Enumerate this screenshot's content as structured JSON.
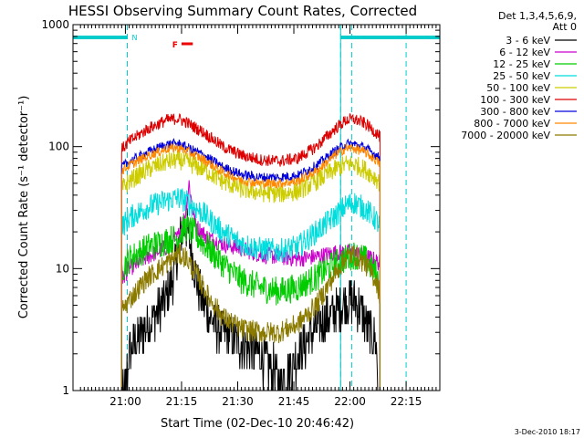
{
  "chart_data": {
    "type": "line",
    "title": "HESSI Observing Summary Count Rates, Corrected",
    "xlabel": "Start Time (02-Dec-10 20:46:42)",
    "ylabel": "Corrected Count Rate (s⁻¹ detector⁻¹)",
    "yscale": "log",
    "xlim_minutes_after_2046": [
      0,
      98
    ],
    "ylim": [
      1,
      1000
    ],
    "x_ticks": [
      {
        "label": "21:00",
        "min": 14
      },
      {
        "label": "21:15",
        "min": 29
      },
      {
        "label": "21:30",
        "min": 44
      },
      {
        "label": "21:45",
        "min": 59
      },
      {
        "label": "22:00",
        "min": 74
      },
      {
        "label": "22:15",
        "min": 89
      }
    ],
    "y_ticks": [
      "1",
      "10",
      "100",
      "1000"
    ],
    "legend": {
      "header": [
        "Det 1,3,4,5,6,9,",
        "Att 0"
      ],
      "placement": "right"
    },
    "series": [
      {
        "name": "3 - 6 keV",
        "color": "#000000",
        "noise": 0.5,
        "xy": [
          [
            13,
            1
          ],
          [
            14,
            1
          ],
          [
            15,
            2
          ],
          [
            17,
            2.6
          ],
          [
            20,
            3.5
          ],
          [
            23,
            4.5
          ],
          [
            25,
            6
          ],
          [
            27,
            9
          ],
          [
            28,
            14
          ],
          [
            29,
            20
          ],
          [
            30,
            23
          ],
          [
            31,
            18
          ],
          [
            32,
            12
          ],
          [
            33,
            8
          ],
          [
            35,
            5
          ],
          [
            37,
            3.8
          ],
          [
            40,
            3
          ],
          [
            45,
            2.5
          ],
          [
            50,
            2
          ],
          [
            53,
            1.5
          ],
          [
            56,
            1.2
          ],
          [
            58,
            1.5
          ],
          [
            62,
            2.5
          ],
          [
            66,
            3.5
          ],
          [
            70,
            4.5
          ],
          [
            73,
            5.5
          ],
          [
            75,
            5.5
          ],
          [
            77,
            4.5
          ],
          [
            79,
            3.2
          ],
          [
            81,
            2.5
          ],
          [
            81.5,
            1
          ]
        ]
      },
      {
        "name": "6 - 12 keV",
        "color": "#cc00cc",
        "noise": 0.07,
        "xy": [
          [
            13,
            8
          ],
          [
            15,
            10
          ],
          [
            20,
            12.5
          ],
          [
            25,
            15
          ],
          [
            28,
            18
          ],
          [
            30,
            28
          ],
          [
            31,
            50
          ],
          [
            32,
            30
          ],
          [
            33,
            22
          ],
          [
            36,
            18
          ],
          [
            40,
            16
          ],
          [
            45,
            14.5
          ],
          [
            50,
            13
          ],
          [
            55,
            12.5
          ],
          [
            60,
            12
          ],
          [
            65,
            12.5
          ],
          [
            70,
            13.5
          ],
          [
            75,
            13.5
          ],
          [
            80,
            12
          ],
          [
            82,
            11
          ]
        ]
      },
      {
        "name": "12 - 25 keV",
        "color": "#00cc00",
        "noise": 0.12,
        "xy": [
          [
            13,
            10
          ],
          [
            15,
            12
          ],
          [
            20,
            15
          ],
          [
            25,
            17
          ],
          [
            28,
            18
          ],
          [
            30,
            22
          ],
          [
            32,
            20
          ],
          [
            35,
            16
          ],
          [
            40,
            11
          ],
          [
            45,
            8
          ],
          [
            50,
            7
          ],
          [
            55,
            6.5
          ],
          [
            60,
            7
          ],
          [
            65,
            8.5
          ],
          [
            70,
            11
          ],
          [
            75,
            13
          ],
          [
            78,
            12
          ],
          [
            81,
            9
          ],
          [
            82,
            7
          ]
        ]
      },
      {
        "name": "25 - 50 keV",
        "color": "#00dddd",
        "noise": 0.1,
        "xy": [
          [
            13,
            22
          ],
          [
            15,
            26
          ],
          [
            20,
            32
          ],
          [
            25,
            36
          ],
          [
            28,
            38
          ],
          [
            30,
            36
          ],
          [
            35,
            28
          ],
          [
            40,
            20
          ],
          [
            45,
            16
          ],
          [
            50,
            14.5
          ],
          [
            55,
            14
          ],
          [
            60,
            15
          ],
          [
            65,
            20
          ],
          [
            70,
            27
          ],
          [
            73,
            33
          ],
          [
            75,
            35
          ],
          [
            78,
            31
          ],
          [
            81,
            25
          ],
          [
            82,
            22
          ]
        ]
      },
      {
        "name": "50 - 100 keV",
        "color": "#cccc00",
        "noise": 0.08,
        "xy": [
          [
            13,
            45
          ],
          [
            15,
            52
          ],
          [
            20,
            65
          ],
          [
            25,
            75
          ],
          [
            28,
            78
          ],
          [
            30,
            75
          ],
          [
            35,
            65
          ],
          [
            40,
            52
          ],
          [
            45,
            45
          ],
          [
            50,
            42
          ],
          [
            55,
            41
          ],
          [
            60,
            43
          ],
          [
            65,
            52
          ],
          [
            70,
            65
          ],
          [
            73,
            72
          ],
          [
            75,
            72
          ],
          [
            78,
            65
          ],
          [
            81,
            55
          ],
          [
            82,
            50
          ]
        ]
      },
      {
        "name": "100 - 300 keV",
        "color": "#dd0000",
        "noise": 0.05,
        "xy": [
          [
            13,
            95
          ],
          [
            15,
            110
          ],
          [
            20,
            140
          ],
          [
            25,
            165
          ],
          [
            28,
            170
          ],
          [
            30,
            160
          ],
          [
            35,
            130
          ],
          [
            40,
            100
          ],
          [
            45,
            85
          ],
          [
            50,
            78
          ],
          [
            55,
            76
          ],
          [
            60,
            80
          ],
          [
            65,
            100
          ],
          [
            70,
            140
          ],
          [
            73,
            165
          ],
          [
            75,
            168
          ],
          [
            78,
            155
          ],
          [
            81,
            130
          ],
          [
            82,
            120
          ]
        ]
      },
      {
        "name": "300 - 800 keV",
        "color": "#0000dd",
        "noise": 0.04,
        "xy": [
          [
            13,
            68
          ],
          [
            15,
            75
          ],
          [
            20,
            90
          ],
          [
            25,
            104
          ],
          [
            28,
            106
          ],
          [
            30,
            100
          ],
          [
            35,
            85
          ],
          [
            40,
            68
          ],
          [
            45,
            59
          ],
          [
            50,
            56
          ],
          [
            55,
            56
          ],
          [
            60,
            58
          ],
          [
            65,
            70
          ],
          [
            70,
            92
          ],
          [
            73,
            105
          ],
          [
            75,
            105
          ],
          [
            78,
            98
          ],
          [
            81,
            85
          ],
          [
            82,
            80
          ]
        ]
      },
      {
        "name": "800 - 7000 keV",
        "color": "#ff8800",
        "noise": 0.04,
        "xy": [
          [
            13,
            63
          ],
          [
            15,
            70
          ],
          [
            20,
            84
          ],
          [
            25,
            96
          ],
          [
            28,
            98
          ],
          [
            30,
            93
          ],
          [
            35,
            78
          ],
          [
            40,
            62
          ],
          [
            45,
            53
          ],
          [
            50,
            50
          ],
          [
            55,
            50
          ],
          [
            60,
            52
          ],
          [
            65,
            63
          ],
          [
            70,
            85
          ],
          [
            73,
            97
          ],
          [
            75,
            97
          ],
          [
            78,
            90
          ],
          [
            81,
            77
          ],
          [
            82,
            72
          ]
        ]
      },
      {
        "name": "7000 - 20000 keV",
        "color": "#8b7a00",
        "noise": 0.09,
        "xy": [
          [
            13,
            4.5
          ],
          [
            15,
            5.5
          ],
          [
            20,
            8.5
          ],
          [
            25,
            11
          ],
          [
            28,
            13
          ],
          [
            30,
            12.5
          ],
          [
            33,
            9
          ],
          [
            36,
            6
          ],
          [
            40,
            4
          ],
          [
            45,
            3.2
          ],
          [
            50,
            3
          ],
          [
            55,
            3
          ],
          [
            60,
            3.5
          ],
          [
            65,
            5
          ],
          [
            70,
            9
          ],
          [
            73,
            12.5
          ],
          [
            75,
            13
          ],
          [
            78,
            11
          ],
          [
            81,
            8
          ],
          [
            82,
            6
          ]
        ]
      }
    ],
    "annotations": {
      "flags": [
        {
          "label": "N",
          "color": "#00cccc"
        },
        {
          "label": "F",
          "color": "#ee0000"
        }
      ],
      "night_bars_min": [
        [
          0,
          14.5
        ],
        [
          71.5,
          98
        ]
      ],
      "dashed_lines_min": [
        14.5,
        71.5,
        74.5,
        89
      ],
      "solid_lines_min": [
        0,
        71.5
      ],
      "flare_bar_min": [
        29,
        32
      ]
    },
    "footer_stamp": "3-Dec-2010 18:17"
  }
}
